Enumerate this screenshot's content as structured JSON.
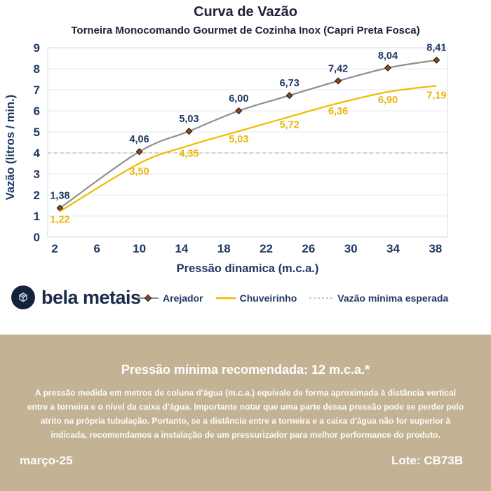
{
  "header": {
    "title": "Curva de Vazão",
    "subtitle": "Torneira Monocomando Gourmet de Cozinha Inox (Capri Preta Fosca)"
  },
  "chart_data": {
    "type": "line",
    "title": "Curva de Vazão",
    "xlabel": "Pressão dinamica (m.c.a.)",
    "ylabel": "Vazão (litros / min.)",
    "x_ticks": [
      2,
      6,
      10,
      14,
      18,
      22,
      26,
      30,
      34,
      38
    ],
    "y_ticks": [
      0,
      1,
      2,
      3,
      4,
      5,
      6,
      7,
      8,
      9
    ],
    "xlim": [
      1.34,
      39.14
    ],
    "ylim": [
      0,
      9
    ],
    "grid": "horizontal",
    "legend_position": "bottom",
    "series": [
      {
        "name": "Arejador",
        "color": "#8f8f8f",
        "marker": "diamond",
        "marker_fill": "#9c4708",
        "marker_stroke": "#232838",
        "label_color": "#1f3864",
        "x": [
          2.5,
          10,
          14.7,
          19.4,
          24.2,
          28.8,
          33.5,
          38.1
        ],
        "values": [
          1.38,
          4.06,
          5.03,
          6.0,
          6.73,
          7.42,
          8.04,
          8.41
        ],
        "labels": [
          "1,38",
          "4,06",
          "5,03",
          "6,00",
          "6,73",
          "7,42",
          "8,04",
          "8,41"
        ]
      },
      {
        "name": "Chuveirinho",
        "color": "#f0bc00",
        "marker": "none",
        "label_color": "#e8b60b",
        "x": [
          2.5,
          10,
          14.7,
          19.4,
          24.2,
          28.8,
          33.5,
          38.1
        ],
        "values": [
          1.22,
          3.5,
          4.35,
          5.03,
          5.72,
          6.36,
          6.9,
          7.19
        ],
        "labels": [
          "1,22",
          "3,50",
          "4,35",
          "5,03",
          "5,72",
          "6,36",
          "6,90",
          "7,19"
        ]
      }
    ],
    "reference_line": {
      "name": "Vazão mínima esperada",
      "value": 4,
      "style": "dashed",
      "color": "#b8b8b8"
    },
    "axis_color": "#1f3864",
    "gridline_color": "#e9e9f1",
    "border_color": "#dadae2"
  },
  "legend": {
    "items": [
      {
        "label": "Arejador",
        "swatch": "line-with-diamond-marker",
        "color": "#8f8f8f",
        "marker_fill": "#9c4708"
      },
      {
        "label": "Chuveirinho",
        "swatch": "solid-line",
        "color": "#f0bc00"
      },
      {
        "label": "Vazão mínima esperada",
        "swatch": "dashed-line",
        "color": "#b8b8b8"
      }
    ]
  },
  "logo": {
    "wordmark": "bela metais",
    "icon": "isometric-cube-icon",
    "badge_color": "#16213a",
    "glyph_color": "#cfe9ee"
  },
  "info_panel": {
    "background": "#c4b295",
    "heading": "Pressão mínima recomendada: 12 m.c.a.*",
    "body": "A pressão medida em metros de coluna d'água (m.c.a.) equivale de forma aproximada à distância vertical entre a torneira e o nível da caixa d'água. Importante notar que uma parte dessa pressão pode se perder pelo atrito na própria tubulação. Portanto, se a distância entre a torneira e a caixa d'água não for superior à indicada, recomendamos a instalação de um pressurizador para melhor performance do produto.",
    "date": "março-25",
    "lot": "Lote: CB73B"
  }
}
